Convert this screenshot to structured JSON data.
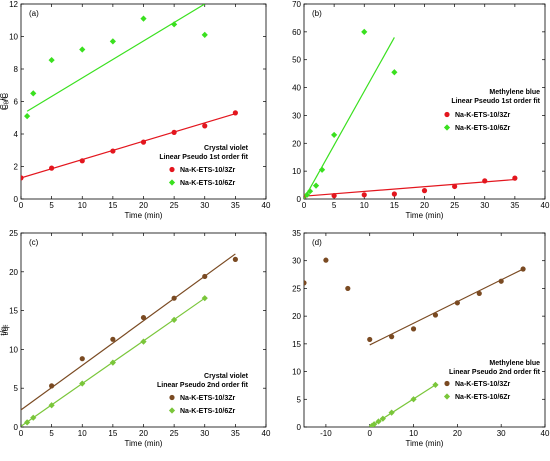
{
  "colors": {
    "series_1": "#e3161e",
    "series_2": "#3ae01f",
    "series_1_c": "#7a4a22",
    "series_2_c": "#7ac63a"
  },
  "chart_data": [
    {
      "panel": "(a)",
      "type": "scatter",
      "xlabel": "Time (min)",
      "ylabel": "C₀/C",
      "xlim": [
        0,
        40
      ],
      "ylim": [
        0,
        12
      ],
      "xticks": [
        0,
        5,
        10,
        15,
        20,
        25,
        30,
        35,
        40
      ],
      "yticks": [
        0,
        2,
        4,
        6,
        8,
        10,
        12
      ],
      "annotation": [
        "Crystal violet",
        "Linear Pseudo 1st order fit"
      ],
      "series": [
        {
          "name": "Na-K-ETS-10/3Zr",
          "color_key": "series_1",
          "marker": "circle",
          "x": [
            0,
            5,
            10,
            15,
            20,
            25,
            30,
            35
          ],
          "y": [
            1.3,
            1.9,
            2.35,
            2.95,
            3.5,
            4.1,
            4.5,
            5.3
          ],
          "fit": [
            [
              0,
              1.3
            ],
            [
              35,
              5.25
            ]
          ]
        },
        {
          "name": "Na-K-ETS-10/6Zr",
          "color_key": "series_2",
          "marker": "diamond",
          "x": [
            1,
            2,
            5,
            10,
            15,
            20,
            25,
            30
          ],
          "y": [
            5.1,
            6.5,
            8.55,
            9.2,
            9.7,
            11.1,
            10.75,
            10.1
          ],
          "fit": [
            [
              1,
              5.4
            ],
            [
              30,
              12
            ]
          ]
        }
      ]
    },
    {
      "panel": "(b)",
      "type": "scatter",
      "xlabel": "Time (min)",
      "ylabel": "C₀/C",
      "xlim": [
        0,
        40
      ],
      "ylim": [
        0,
        70
      ],
      "xticks": [
        0,
        5,
        10,
        15,
        20,
        25,
        30,
        35,
        40
      ],
      "yticks": [
        0,
        10,
        20,
        30,
        40,
        50,
        60,
        70
      ],
      "annotation": [
        "Methylene blue",
        "Linear Pseudo 1st order fit"
      ],
      "series": [
        {
          "name": "Na-K-ETS-10/3Zr",
          "color_key": "series_1",
          "marker": "circle",
          "x": [
            0,
            5,
            10,
            15,
            20,
            25,
            30,
            35
          ],
          "y": [
            1,
            1.2,
            1.5,
            1.8,
            3,
            4.5,
            6.5,
            7.5
          ],
          "fit": [
            [
              0,
              1
            ],
            [
              35,
              7
            ]
          ]
        },
        {
          "name": "Na-K-ETS-10/6Zr",
          "color_key": "series_2",
          "marker": "diamond",
          "x": [
            0.5,
            1,
            2,
            3,
            5,
            10,
            15
          ],
          "y": [
            1.5,
            2.8,
            4.8,
            10.5,
            23,
            60,
            45.5
          ],
          "fit": [
            [
              0,
              0
            ],
            [
              15,
              58
            ]
          ]
        }
      ]
    },
    {
      "panel": "(c)",
      "type": "scatter",
      "xlabel": "Time (min)",
      "ylabel": "t/qₜ",
      "xlim": [
        0,
        40
      ],
      "ylim": [
        0,
        25
      ],
      "xticks": [
        0,
        5,
        10,
        15,
        20,
        25,
        30,
        35,
        40
      ],
      "yticks": [
        0,
        5,
        10,
        15,
        20,
        25
      ],
      "annotation": [
        "Crystal violet",
        "Linear Pseudo 2nd order fit"
      ],
      "series": [
        {
          "name": "Na-K-ETS-10/3Zr",
          "color_key": "series_1_c",
          "marker": "circle",
          "x": [
            5,
            10,
            15,
            20,
            25,
            30,
            35
          ],
          "y": [
            5.3,
            8.8,
            11.3,
            14.1,
            16.6,
            19.4,
            21.6
          ],
          "fit": [
            [
              0,
              2.2
            ],
            [
              35,
              22.3
            ]
          ]
        },
        {
          "name": "Na-K-ETS-10/6Zr",
          "color_key": "series_2_c",
          "marker": "diamond",
          "x": [
            1,
            2,
            5,
            10,
            15,
            20,
            25,
            30
          ],
          "y": [
            0.6,
            1.2,
            2.8,
            5.6,
            8.3,
            11.0,
            13.8,
            16.6
          ],
          "fit": [
            [
              0,
              0.1
            ],
            [
              30,
              16.6
            ]
          ]
        }
      ]
    },
    {
      "panel": "(d)",
      "type": "scatter",
      "xlabel": "Time (min)",
      "ylabel": "t/qₜ",
      "xlim": [
        -15,
        40
      ],
      "ylim": [
        0,
        35
      ],
      "xticks": [
        -10,
        0,
        10,
        20,
        30,
        40
      ],
      "yticks": [
        0,
        5,
        10,
        15,
        20,
        25,
        30,
        35
      ],
      "annotation": [
        "Methylene blue",
        "Linear Pseudo 2nd order fit"
      ],
      "series": [
        {
          "name": "Na-K-ETS-10/3Zr",
          "color_key": "series_1_c",
          "marker": "circle",
          "x": [
            -15,
            -10,
            -5,
            0,
            5,
            10,
            15,
            20,
            25,
            30,
            35
          ],
          "y": [
            26.0,
            30.1,
            25.0,
            15.8,
            16.3,
            17.7,
            20.2,
            22.4,
            24.1,
            26.3,
            28.5
          ],
          "fit": [
            [
              0,
              14.8
            ],
            [
              35,
              28.5
            ]
          ]
        },
        {
          "name": "Na-K-ETS-10/6Zr",
          "color_key": "series_2_c",
          "marker": "diamond",
          "x": [
            0.5,
            1,
            2,
            3,
            5,
            10,
            15
          ],
          "y": [
            0.2,
            0.5,
            1.0,
            1.5,
            2.6,
            5.0,
            7.6
          ],
          "fit": [
            [
              0,
              0
            ],
            [
              15,
              7.6
            ]
          ]
        }
      ]
    }
  ]
}
